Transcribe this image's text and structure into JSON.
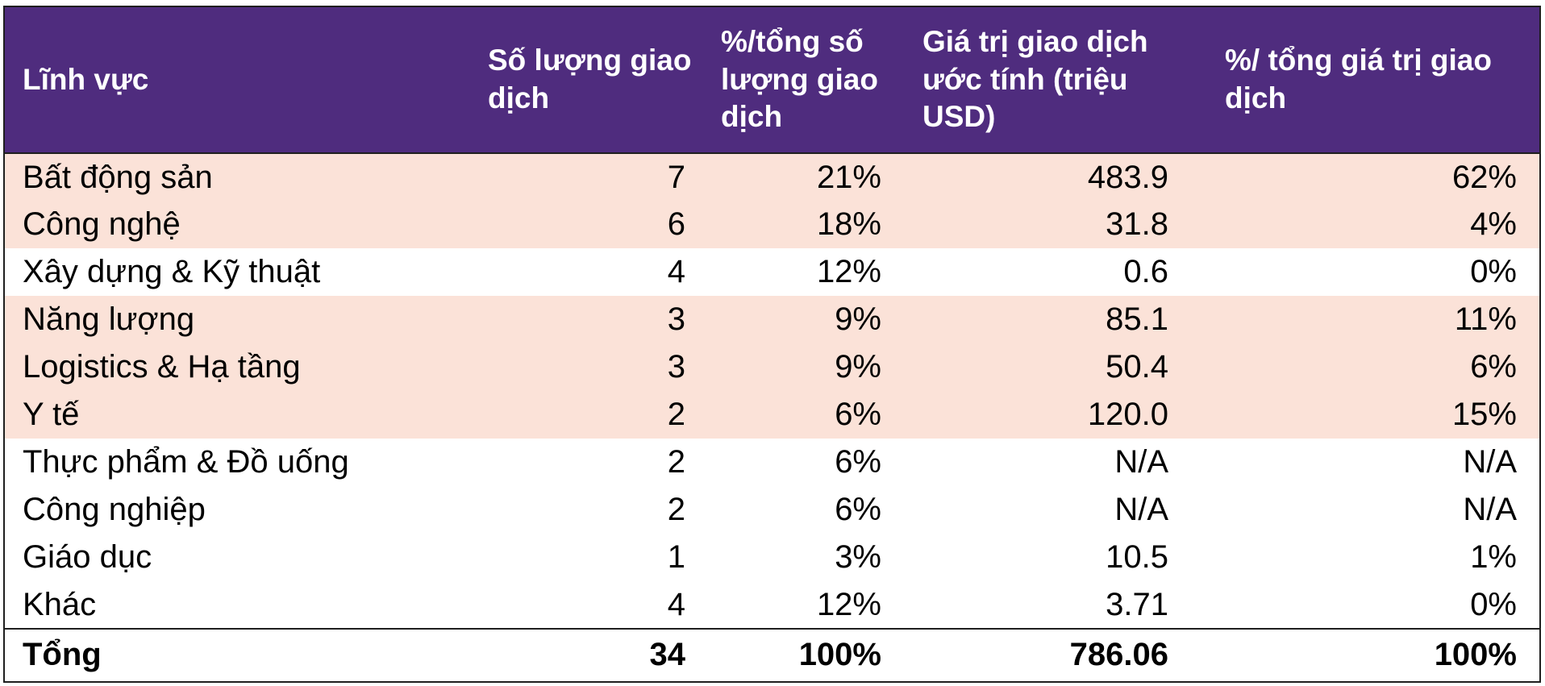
{
  "colors": {
    "header_bg": "#4f2c7e",
    "header_text": "#ffffff",
    "highlight_row_bg": "#fbe2d8",
    "border": "#1f1f1f"
  },
  "table": {
    "headers": [
      "Lĩnh vực",
      "Số lượng giao dịch",
      "%/tổng số lượng giao dịch",
      "Giá trị giao dịch ước tính (triệu USD)",
      "%/ tổng giá trị giao dịch"
    ],
    "rows": [
      {
        "sector": "Bất động sản",
        "count": "7",
        "count_pct": "21%",
        "value": "483.9",
        "value_pct": "62%",
        "highlight": true
      },
      {
        "sector": "Công nghệ",
        "count": "6",
        "count_pct": "18%",
        "value": "31.8",
        "value_pct": "4%",
        "highlight": true
      },
      {
        "sector": "Xây dựng & Kỹ thuật",
        "count": "4",
        "count_pct": "12%",
        "value": "0.6",
        "value_pct": "0%",
        "highlight": false
      },
      {
        "sector": "Năng lượng",
        "count": "3",
        "count_pct": "9%",
        "value": "85.1",
        "value_pct": "11%",
        "highlight": true
      },
      {
        "sector": "Logistics & Hạ tầng",
        "count": "3",
        "count_pct": "9%",
        "value": "50.4",
        "value_pct": "6%",
        "highlight": true
      },
      {
        "sector": "Y tế",
        "count": "2",
        "count_pct": "6%",
        "value": "120.0",
        "value_pct": "15%",
        "highlight": true
      },
      {
        "sector": "Thực phẩm & Đồ uống",
        "count": "2",
        "count_pct": "6%",
        "value": "N/A",
        "value_pct": "N/A",
        "highlight": false
      },
      {
        "sector": "Công nghiệp",
        "count": "2",
        "count_pct": "6%",
        "value": "N/A",
        "value_pct": "N/A",
        "highlight": false
      },
      {
        "sector": "Giáo dục",
        "count": "1",
        "count_pct": "3%",
        "value": "10.5",
        "value_pct": "1%",
        "highlight": false
      },
      {
        "sector": "Khác",
        "count": "4",
        "count_pct": "12%",
        "value": "3.71",
        "value_pct": "0%",
        "highlight": false
      }
    ],
    "total": {
      "sector": "Tổng",
      "count": "34",
      "count_pct": "100%",
      "value": "786.06",
      "value_pct": "100%"
    }
  }
}
